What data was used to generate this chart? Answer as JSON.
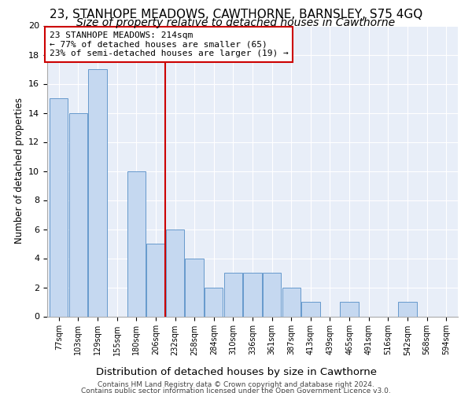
{
  "title": "23, STANHOPE MEADOWS, CAWTHORNE, BARNSLEY, S75 4GQ",
  "subtitle": "Size of property relative to detached houses in Cawthorne",
  "xlabel": "Distribution of detached houses by size in Cawthorne",
  "ylabel": "Number of detached properties",
  "bar_labels": [
    "77sqm",
    "103sqm",
    "129sqm",
    "155sqm",
    "180sqm",
    "206sqm",
    "232sqm",
    "258sqm",
    "284sqm",
    "310sqm",
    "336sqm",
    "361sqm",
    "387sqm",
    "413sqm",
    "439sqm",
    "465sqm",
    "491sqm",
    "516sqm",
    "542sqm",
    "568sqm",
    "594sqm"
  ],
  "bar_values": [
    15,
    14,
    17,
    0,
    10,
    5,
    6,
    4,
    2,
    3,
    3,
    3,
    2,
    1,
    0,
    1,
    0,
    0,
    1,
    0,
    0
  ],
  "bar_color": "#c5d8f0",
  "bar_edge_color": "#6699cc",
  "vline_index": 6,
  "vline_color": "#cc0000",
  "annotation_text": "23 STANHOPE MEADOWS: 214sqm\n← 77% of detached houses are smaller (65)\n23% of semi-detached houses are larger (19) →",
  "annotation_box_color": "#cc0000",
  "ylim": [
    0,
    20
  ],
  "yticks": [
    0,
    2,
    4,
    6,
    8,
    10,
    12,
    14,
    16,
    18,
    20
  ],
  "background_color": "#e8eef8",
  "footer_line1": "Contains HM Land Registry data © Crown copyright and database right 2024.",
  "footer_line2": "Contains public sector information licensed under the Open Government Licence v3.0.",
  "title_fontsize": 11,
  "subtitle_fontsize": 10,
  "xlabel_fontsize": 9.5,
  "ylabel_fontsize": 8.5,
  "annotation_fontsize": 8
}
